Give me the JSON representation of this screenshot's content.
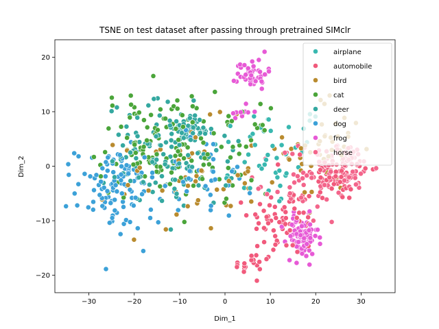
{
  "chart_data": {
    "type": "scatter",
    "title": "TSNE on test dataset after passing through pretrained SIMclr",
    "xlabel": "Dim_1",
    "ylabel": "Dim_2",
    "xlim": [
      -37.5,
      37.5
    ],
    "ylim": [
      -23.2,
      23.2
    ],
    "xticks": [
      -30,
      -20,
      -10,
      0,
      10,
      20,
      30
    ],
    "yticks": [
      -20,
      -10,
      0,
      10,
      20
    ],
    "grid": false,
    "legend_position": "upper right",
    "series": [
      {
        "name": "airplane",
        "color": "#39b8b0",
        "clusters": [
          {
            "cx": 10,
            "cy": 2,
            "sx": 12,
            "sy": 9,
            "n": 45
          }
        ]
      },
      {
        "name": "automobile",
        "color": "#f15a7c",
        "clusters": [
          {
            "cx": 25,
            "cy": -1,
            "sx": 6,
            "sy": 5,
            "n": 75
          },
          {
            "cx": 13,
            "cy": -10,
            "sx": 7,
            "sy": 6,
            "n": 70
          },
          {
            "cx": 6,
            "cy": -18,
            "sx": 4,
            "sy": 2,
            "n": 20
          }
        ]
      },
      {
        "name": "bird",
        "color": "#b98b2f",
        "clusters": [
          {
            "cx": -8,
            "cy": -2,
            "sx": 14,
            "sy": 9,
            "n": 55
          },
          {
            "cx": 22,
            "cy": 3,
            "sx": 8,
            "sy": 9,
            "n": 45
          }
        ]
      },
      {
        "name": "cat",
        "color": "#4ba53a",
        "clusters": [
          {
            "cx": -15,
            "cy": 4,
            "sx": 12,
            "sy": 9,
            "n": 110
          },
          {
            "cx": 3,
            "cy": 3,
            "sx": 6,
            "sy": 7,
            "n": 30
          }
        ]
      },
      {
        "name": "deer",
        "color": "#34a8a0",
        "clusters": [
          {
            "cx": -12,
            "cy": 2,
            "sx": 13,
            "sy": 9,
            "n": 130
          },
          {
            "cx": -8,
            "cy": 7,
            "sx": 3,
            "sy": 2,
            "n": 40
          }
        ]
      },
      {
        "name": "dog",
        "color": "#3ca1d8",
        "clusters": [
          {
            "cx": -24,
            "cy": -4,
            "sx": 8,
            "sy": 7,
            "n": 110
          },
          {
            "cx": -5,
            "cy": -1,
            "sx": 10,
            "sy": 8,
            "n": 40
          }
        ]
      },
      {
        "name": "frog",
        "color": "#e75ad6",
        "clusters": [
          {
            "cx": 17,
            "cy": -13,
            "sx": 3.2,
            "sy": 3.5,
            "n": 85
          },
          {
            "cx": 6,
            "cy": 17,
            "sx": 3,
            "sy": 2.5,
            "n": 45
          },
          {
            "cx": 4,
            "cy": 10,
            "sx": 2.5,
            "sy": 2,
            "n": 10
          }
        ]
      },
      {
        "name": "horse",
        "color": "#f3658b",
        "clusters": [
          {
            "cx": 27,
            "cy": 0,
            "sx": 5,
            "sy": 4,
            "n": 55
          },
          {
            "cx": 18,
            "cy": -3,
            "sx": 7,
            "sy": 7,
            "n": 45
          }
        ]
      }
    ]
  }
}
